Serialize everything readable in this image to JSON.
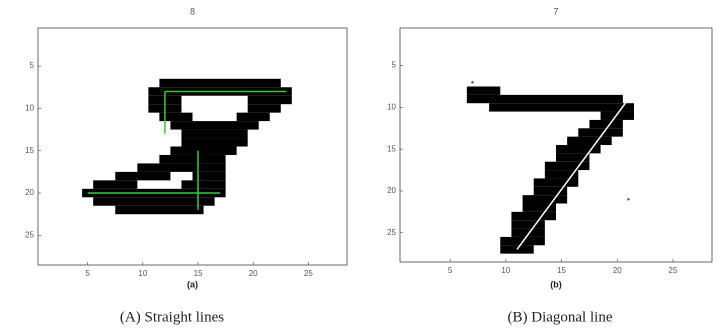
{
  "figure": {
    "panels": [
      {
        "title": "8",
        "xticks": [
          5,
          10,
          15,
          20,
          25
        ],
        "yticks": [
          5,
          10,
          15,
          20,
          25
        ],
        "label": "(a)",
        "caption": "(A) Straight lines"
      },
      {
        "title": "7",
        "xticks": [
          5,
          10,
          15,
          20,
          25
        ],
        "yticks": [
          5,
          10,
          15,
          20,
          25
        ],
        "label": "(b)",
        "caption": "(B) Diagonal line"
      }
    ]
  }
}
